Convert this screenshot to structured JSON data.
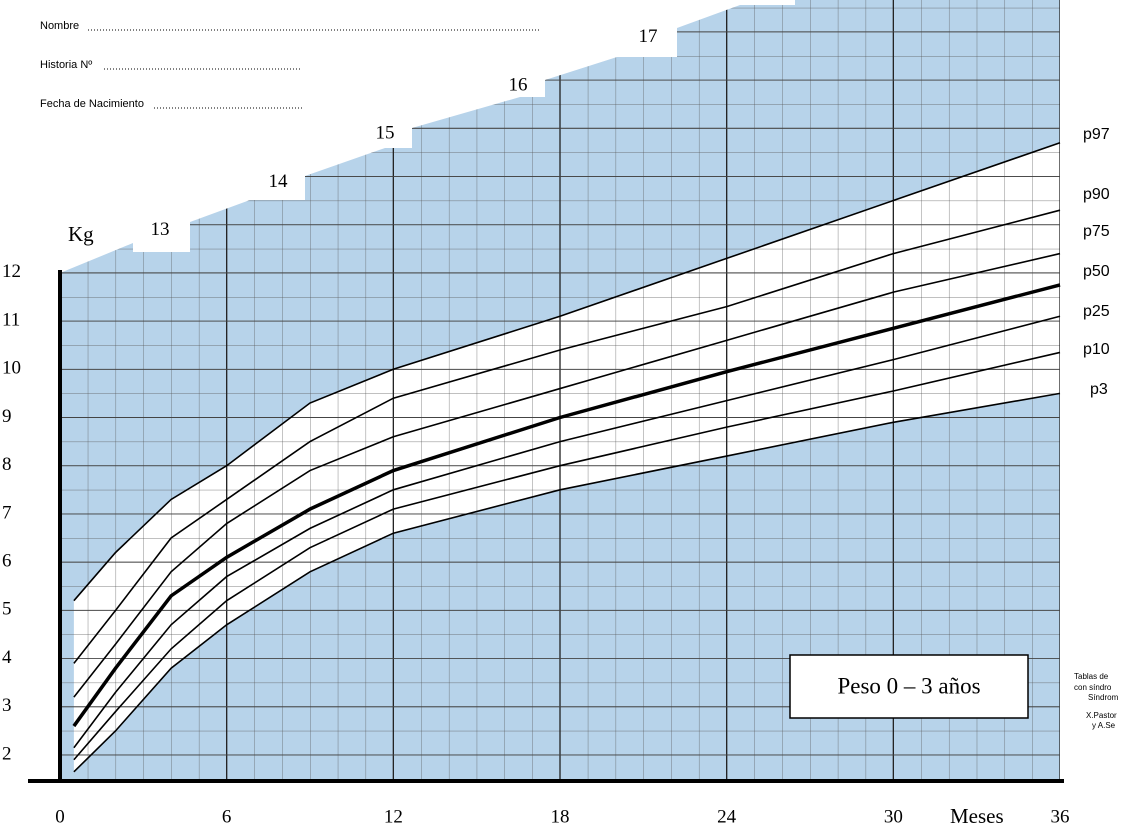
{
  "chart_data": {
    "type": "line",
    "form_fields": [
      "Nombre",
      "Historia Nº",
      "Fecha de Nacimiento"
    ],
    "y_label": "Kg",
    "x_label": "Meses",
    "box_title": "Peso 0 – 3 años",
    "side_note": [
      "Tablas de",
      "con síndro",
      "Síndrom",
      "X.Pastor",
      "y A.Se"
    ],
    "x": [
      0.5,
      2,
      4,
      6,
      9,
      12,
      18,
      24,
      30,
      36
    ],
    "xlim": [
      0,
      36
    ],
    "xticks": [
      0,
      6,
      12,
      18,
      24,
      30,
      36
    ],
    "ylim": [
      1.46,
      17.66
    ],
    "yticks": [
      2,
      3,
      4,
      5,
      6,
      7,
      8,
      9,
      10,
      11,
      12,
      13,
      14,
      15,
      16,
      17
    ],
    "grid": true,
    "bold_series": "p50",
    "series": [
      {
        "name": "p97",
        "color": "#000000",
        "values": [
          5.2,
          6.2,
          7.3,
          8.0,
          9.3,
          10.0,
          11.1,
          12.3,
          13.5,
          14.7
        ]
      },
      {
        "name": "p90",
        "color": "#000000",
        "values": [
          3.9,
          5.0,
          6.5,
          7.3,
          8.5,
          9.4,
          10.4,
          11.3,
          12.4,
          13.3
        ]
      },
      {
        "name": "p75",
        "color": "#000000",
        "values": [
          3.2,
          4.3,
          5.8,
          6.8,
          7.9,
          8.6,
          9.6,
          10.6,
          11.6,
          12.4
        ]
      },
      {
        "name": "p50",
        "color": "#000000",
        "values": [
          2.6,
          3.8,
          5.3,
          6.1,
          7.1,
          7.9,
          9.0,
          9.95,
          10.85,
          11.75
        ]
      },
      {
        "name": "p25",
        "color": "#000000",
        "values": [
          2.15,
          3.3,
          4.7,
          5.7,
          6.7,
          7.5,
          8.5,
          9.35,
          10.2,
          11.1
        ]
      },
      {
        "name": "p10",
        "color": "#000000",
        "values": [
          1.9,
          2.9,
          4.2,
          5.2,
          6.3,
          7.1,
          8.0,
          8.8,
          9.55,
          10.35
        ]
      },
      {
        "name": "p3",
        "color": "#000000",
        "values": [
          1.65,
          2.5,
          3.8,
          4.7,
          5.8,
          6.6,
          7.5,
          8.2,
          8.9,
          9.5
        ]
      }
    ],
    "band_color": "#b7d3ea"
  }
}
